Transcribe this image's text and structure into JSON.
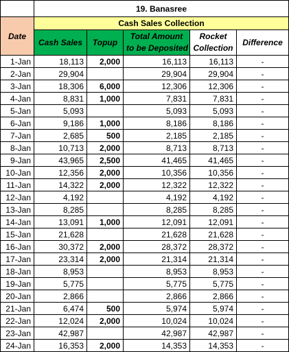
{
  "title": "19. Banasree",
  "group_header": "Cash Sales Collection",
  "headers": {
    "date": "Date",
    "cash_sales": "Cash Sales",
    "topup": "Topup",
    "total_line1": "Total Amount",
    "total_line2": "to be Deposited",
    "rocket_line1": "Rocket",
    "rocket_line2": "Collection",
    "difference": "Difference"
  },
  "rows": [
    {
      "date": "1-Jan",
      "cash_sales": "18,113",
      "topup": "2,000",
      "total": "16,113",
      "rocket": "16,113",
      "difference": "-"
    },
    {
      "date": "2-Jan",
      "cash_sales": "29,904",
      "topup": "",
      "total": "29,904",
      "rocket": "29,904",
      "difference": "-"
    },
    {
      "date": "3-Jan",
      "cash_sales": "18,306",
      "topup": "6,000",
      "total": "12,306",
      "rocket": "12,306",
      "difference": "-"
    },
    {
      "date": "4-Jan",
      "cash_sales": "8,831",
      "topup": "1,000",
      "total": "7,831",
      "rocket": "7,831",
      "difference": "-"
    },
    {
      "date": "5-Jan",
      "cash_sales": "5,093",
      "topup": "",
      "total": "5,093",
      "rocket": "5,093",
      "difference": "-"
    },
    {
      "date": "6-Jan",
      "cash_sales": "9,186",
      "topup": "1,000",
      "total": "8,186",
      "rocket": "8,186",
      "difference": "-"
    },
    {
      "date": "7-Jan",
      "cash_sales": "2,685",
      "topup": "500",
      "total": "2,185",
      "rocket": "2,185",
      "difference": "-"
    },
    {
      "date": "8-Jan",
      "cash_sales": "10,713",
      "topup": "2,000",
      "total": "8,713",
      "rocket": "8,713",
      "difference": "-"
    },
    {
      "date": "9-Jan",
      "cash_sales": "43,965",
      "topup": "2,500",
      "total": "41,465",
      "rocket": "41,465",
      "difference": "-"
    },
    {
      "date": "10-Jan",
      "cash_sales": "12,356",
      "topup": "2,000",
      "total": "10,356",
      "rocket": "10,356",
      "difference": "-"
    },
    {
      "date": "11-Jan",
      "cash_sales": "14,322",
      "topup": "2,000",
      "total": "12,322",
      "rocket": "12,322",
      "difference": "-"
    },
    {
      "date": "12-Jan",
      "cash_sales": "4,192",
      "topup": "",
      "total": "4,192",
      "rocket": "4,192",
      "difference": "-"
    },
    {
      "date": "13-Jan",
      "cash_sales": "8,285",
      "topup": "",
      "total": "8,285",
      "rocket": "8,285",
      "difference": "-"
    },
    {
      "date": "14-Jan",
      "cash_sales": "13,091",
      "topup": "1,000",
      "total": "12,091",
      "rocket": "12,091",
      "difference": "-"
    },
    {
      "date": "15-Jan",
      "cash_sales": "21,628",
      "topup": "",
      "total": "21,628",
      "rocket": "21,628",
      "difference": "-"
    },
    {
      "date": "16-Jan",
      "cash_sales": "30,372",
      "topup": "2,000",
      "total": "28,372",
      "rocket": "28,372",
      "difference": "-"
    },
    {
      "date": "17-Jan",
      "cash_sales": "23,314",
      "topup": "2,000",
      "total": "21,314",
      "rocket": "21,314",
      "difference": "-"
    },
    {
      "date": "18-Jan",
      "cash_sales": "8,953",
      "topup": "",
      "total": "8,953",
      "rocket": "8,953",
      "difference": "-"
    },
    {
      "date": "19-Jan",
      "cash_sales": "5,775",
      "topup": "",
      "total": "5,775",
      "rocket": "5,775",
      "difference": "-"
    },
    {
      "date": "20-Jan",
      "cash_sales": "2,866",
      "topup": "",
      "total": "2,866",
      "rocket": "2,866",
      "difference": "-"
    },
    {
      "date": "21-Jan",
      "cash_sales": "6,474",
      "topup": "500",
      "total": "5,974",
      "rocket": "5,974",
      "difference": "-"
    },
    {
      "date": "22-Jan",
      "cash_sales": "12,024",
      "topup": "2,000",
      "total": "10,024",
      "rocket": "10,024",
      "difference": "-"
    },
    {
      "date": "23-Jan",
      "cash_sales": "42,987",
      "topup": "",
      "total": "42,987",
      "rocket": "42,987",
      "difference": "-"
    },
    {
      "date": "24-Jan",
      "cash_sales": "16,353",
      "topup": "2,000",
      "total": "14,353",
      "rocket": "14,353",
      "difference": "-"
    }
  ],
  "colors": {
    "group_bg": "#ffff99",
    "date_header_bg": "#f8cbad",
    "green_header_bg": "#00b050",
    "topup_text": "#ed7d31"
  }
}
